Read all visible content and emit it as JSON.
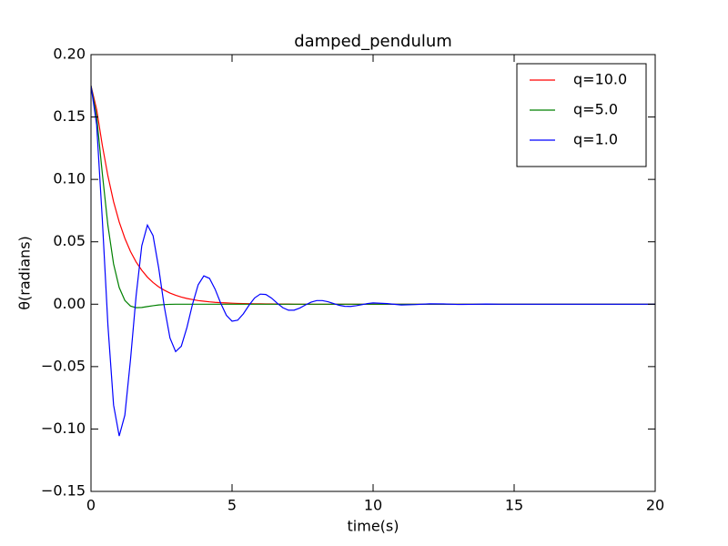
{
  "chart_data": {
    "type": "line",
    "title": "damped_pendulum",
    "x_label": "time(s)",
    "y_label": "θ(radians)",
    "x": [
      0,
      0.2,
      0.4,
      0.6,
      0.8,
      1,
      1.2,
      1.4,
      1.6,
      1.8,
      2,
      2.2,
      2.4,
      2.6,
      2.8,
      3,
      3.2,
      3.4,
      3.6,
      3.8,
      4,
      4.2,
      4.4,
      4.6,
      4.8,
      5,
      5.2,
      5.4,
      5.6,
      5.8,
      6,
      6.2,
      6.4,
      6.6,
      6.8,
      7,
      7.2,
      7.4,
      7.6,
      7.8,
      8,
      8.2,
      8.4,
      8.6,
      8.8,
      9,
      9.2,
      9.4,
      9.6,
      9.8,
      10,
      10.5,
      11,
      11.5,
      12,
      12.5,
      13,
      13.5,
      14,
      14.5,
      15,
      15.5,
      16,
      16.5,
      17,
      17.5,
      18,
      18.5,
      19,
      19.5,
      20
    ],
    "series": [
      {
        "name": "q=10.0",
        "color": "#ff0000",
        "values": [
          0.175,
          0.156,
          0.1275,
          0.1027,
          0.0822,
          0.0659,
          0.0528,
          0.0422,
          0.0338,
          0.0272,
          0.0217,
          0.0174,
          0.0139,
          0.0112,
          0.0089,
          0.0072,
          0.0057,
          0.0046,
          0.0037,
          0.0029,
          0.0024,
          0.0019,
          0.0015,
          0.0012,
          0.001,
          0.0008,
          0.0006,
          0.0005,
          0.0004,
          0.0003,
          0.0003,
          0.0002,
          0.0002,
          0.0001,
          0.0001,
          0.0001,
          0,
          0,
          0,
          0,
          0,
          0,
          0,
          0,
          0,
          0,
          0,
          0,
          0,
          0,
          0,
          0,
          0,
          0,
          0,
          0,
          0,
          0,
          0,
          0,
          0,
          0,
          0,
          0,
          0,
          0,
          0,
          0,
          0,
          0,
          0
        ]
      },
      {
        "name": "q=5.0",
        "color": "#008000",
        "values": [
          0.175,
          0.1504,
          0.105,
          0.063,
          0.0323,
          0.0133,
          0.003,
          -0.0015,
          -0.0028,
          -0.0026,
          -0.0019,
          -0.0012,
          -0.0006,
          -0.0003,
          -0.0001,
          0,
          0,
          0,
          0,
          0,
          0,
          0,
          0,
          0,
          0,
          0,
          0,
          0,
          0,
          0,
          0,
          0,
          0,
          0,
          0,
          0,
          0,
          0,
          0,
          0,
          0,
          0,
          0,
          0,
          0,
          0,
          0,
          0,
          0,
          0,
          0,
          0,
          0,
          0,
          0,
          0,
          0,
          0,
          0,
          0,
          0,
          0,
          0,
          0,
          0,
          0,
          0,
          0,
          0,
          0,
          0
        ]
      },
      {
        "name": "q=1.0",
        "color": "#0000ff",
        "values": [
          0.175,
          0.1438,
          0.0684,
          -0.0169,
          -0.0808,
          -0.1056,
          -0.0889,
          -0.0445,
          0.0069,
          0.0468,
          0.0634,
          0.0549,
          0.029,
          -0.0022,
          -0.0271,
          -0.038,
          -0.0337,
          -0.0187,
          0.0001,
          0.0156,
          0.0227,
          0.0207,
          0.012,
          0.0007,
          -0.0089,
          -0.0136,
          -0.0128,
          -0.0077,
          -0.0009,
          0.005,
          0.0081,
          0.0078,
          0.0049,
          0.0008,
          -0.0028,
          -0.0048,
          -0.0048,
          -0.0031,
          -0.0006,
          0.0016,
          0.0029,
          0.0029,
          0.002,
          0.0005,
          -0.0009,
          -0.0017,
          -0.0018,
          -0.0012,
          -0.0004,
          0.0005,
          0.001,
          0.0005,
          -0.0006,
          -0.0003,
          0.0003,
          0.0002,
          -0.0002,
          -0.0001,
          0.0001,
          0,
          0,
          0,
          0,
          0,
          0,
          0,
          0,
          0,
          0,
          0,
          0
        ]
      }
    ],
    "xlim": [
      0,
      20
    ],
    "xticks": [
      0,
      5,
      10,
      15,
      20
    ],
    "ylim": [
      -0.15,
      0.2
    ],
    "yticks": [
      {
        "value": -0.15,
        "label": "−0.15"
      },
      {
        "value": -0.1,
        "label": "−0.10"
      },
      {
        "value": -0.05,
        "label": "−0.05"
      },
      {
        "value": 0,
        "label": "0.00"
      },
      {
        "value": 0.05,
        "label": "0.05"
      },
      {
        "value": 0.1,
        "label": "0.10"
      },
      {
        "value": 0.15,
        "label": "0.15"
      },
      {
        "value": 0.2,
        "label": "0.20"
      }
    ],
    "legend": "upper right"
  }
}
